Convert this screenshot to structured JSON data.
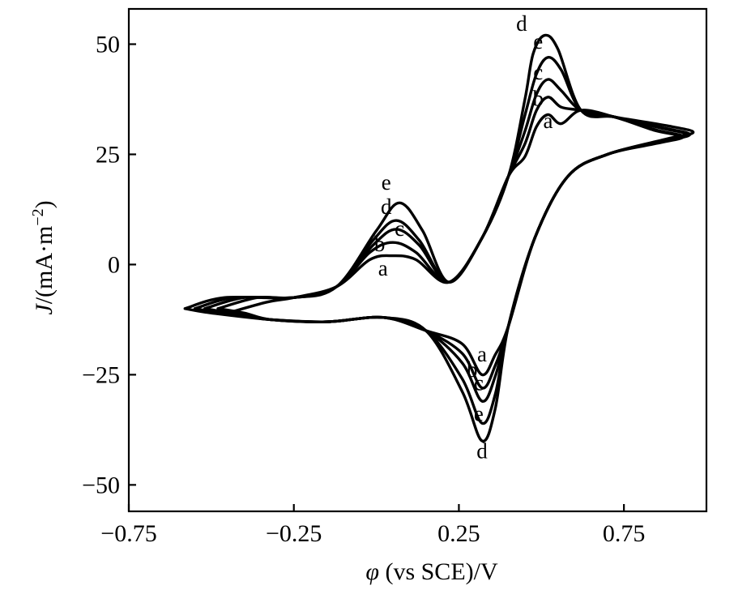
{
  "chart_data": {
    "type": "line",
    "title": "",
    "xlabel_symbol": "φ",
    "xlabel_text": " (vs SCE)/V",
    "ylabel_symbol": "J",
    "ylabel_text": "/(mA·m",
    "ylabel_sup": "−2",
    "ylabel_close": ")",
    "xlim": [
      -0.75,
      1.0
    ],
    "ylim": [
      -56,
      58
    ],
    "xticks": [
      -0.75,
      -0.25,
      0.25,
      0.75
    ],
    "xtick_labels": [
      "−0.75",
      "−0.25",
      "0.25",
      "0.75"
    ],
    "yticks": [
      -50,
      -25,
      0,
      25,
      50
    ],
    "ytick_labels": [
      "−50",
      "−25",
      "0",
      "25",
      "50"
    ],
    "grid": false,
    "legend": "inline labels",
    "series": [
      {
        "name": "a",
        "anodic_peak_1": [
          0.05,
          2
        ],
        "anodic_peak_2": [
          0.52,
          34
        ],
        "cathodic_peak": [
          0.32,
          -25
        ],
        "switch_high": [
          0.92,
          29
        ],
        "switch_low": [
          -0.45,
          -11
        ]
      },
      {
        "name": "b",
        "anodic_peak_1": [
          0.05,
          5
        ],
        "anodic_peak_2": [
          0.52,
          38
        ],
        "cathodic_peak": [
          0.32,
          -28
        ],
        "switch_high": [
          0.93,
          29
        ],
        "switch_low": [
          -0.48,
          -10
        ]
      },
      {
        "name": "c",
        "anodic_peak_1": [
          0.06,
          8
        ],
        "anodic_peak_2": [
          0.52,
          42
        ],
        "cathodic_peak": [
          0.32,
          -31
        ],
        "switch_high": [
          0.94,
          29.5
        ],
        "switch_low": [
          -0.52,
          -10
        ]
      },
      {
        "name": "d",
        "anodic_peak_1": [
          0.06,
          10
        ],
        "anodic_peak_2": [
          0.51,
          52
        ],
        "cathodic_peak": [
          0.32,
          -40
        ],
        "switch_high": [
          0.96,
          30
        ],
        "switch_low": [
          -0.58,
          -10
        ]
      },
      {
        "name": "e",
        "anodic_peak_1": [
          0.07,
          14
        ],
        "anodic_peak_2": [
          0.52,
          47
        ],
        "cathodic_peak": [
          0.32,
          -36
        ],
        "switch_high": [
          0.95,
          29.5
        ],
        "switch_low": [
          -0.55,
          -10
        ]
      }
    ],
    "annotations": [
      {
        "text": "d",
        "x": 0.44,
        "y": 53
      },
      {
        "text": "e",
        "x": 0.49,
        "y": 49
      },
      {
        "text": "c",
        "x": 0.49,
        "y": 42
      },
      {
        "text": "b",
        "x": 0.49,
        "y": 36
      },
      {
        "text": "a",
        "x": 0.52,
        "y": 31
      },
      {
        "text": "e",
        "x": 0.03,
        "y": 17
      },
      {
        "text": "d",
        "x": 0.03,
        "y": 11.5
      },
      {
        "text": "c",
        "x": 0.07,
        "y": 6.5
      },
      {
        "text": "b",
        "x": 0.01,
        "y": 3
      },
      {
        "text": "a",
        "x": 0.02,
        "y": -2.5
      },
      {
        "text": "a",
        "x": 0.32,
        "y": -22
      },
      {
        "text": "b",
        "x": 0.29,
        "y": -25.5
      },
      {
        "text": "c",
        "x": 0.31,
        "y": -28.5
      },
      {
        "text": "e",
        "x": 0.31,
        "y": -35.5
      },
      {
        "text": "d",
        "x": 0.32,
        "y": -44
      }
    ]
  }
}
